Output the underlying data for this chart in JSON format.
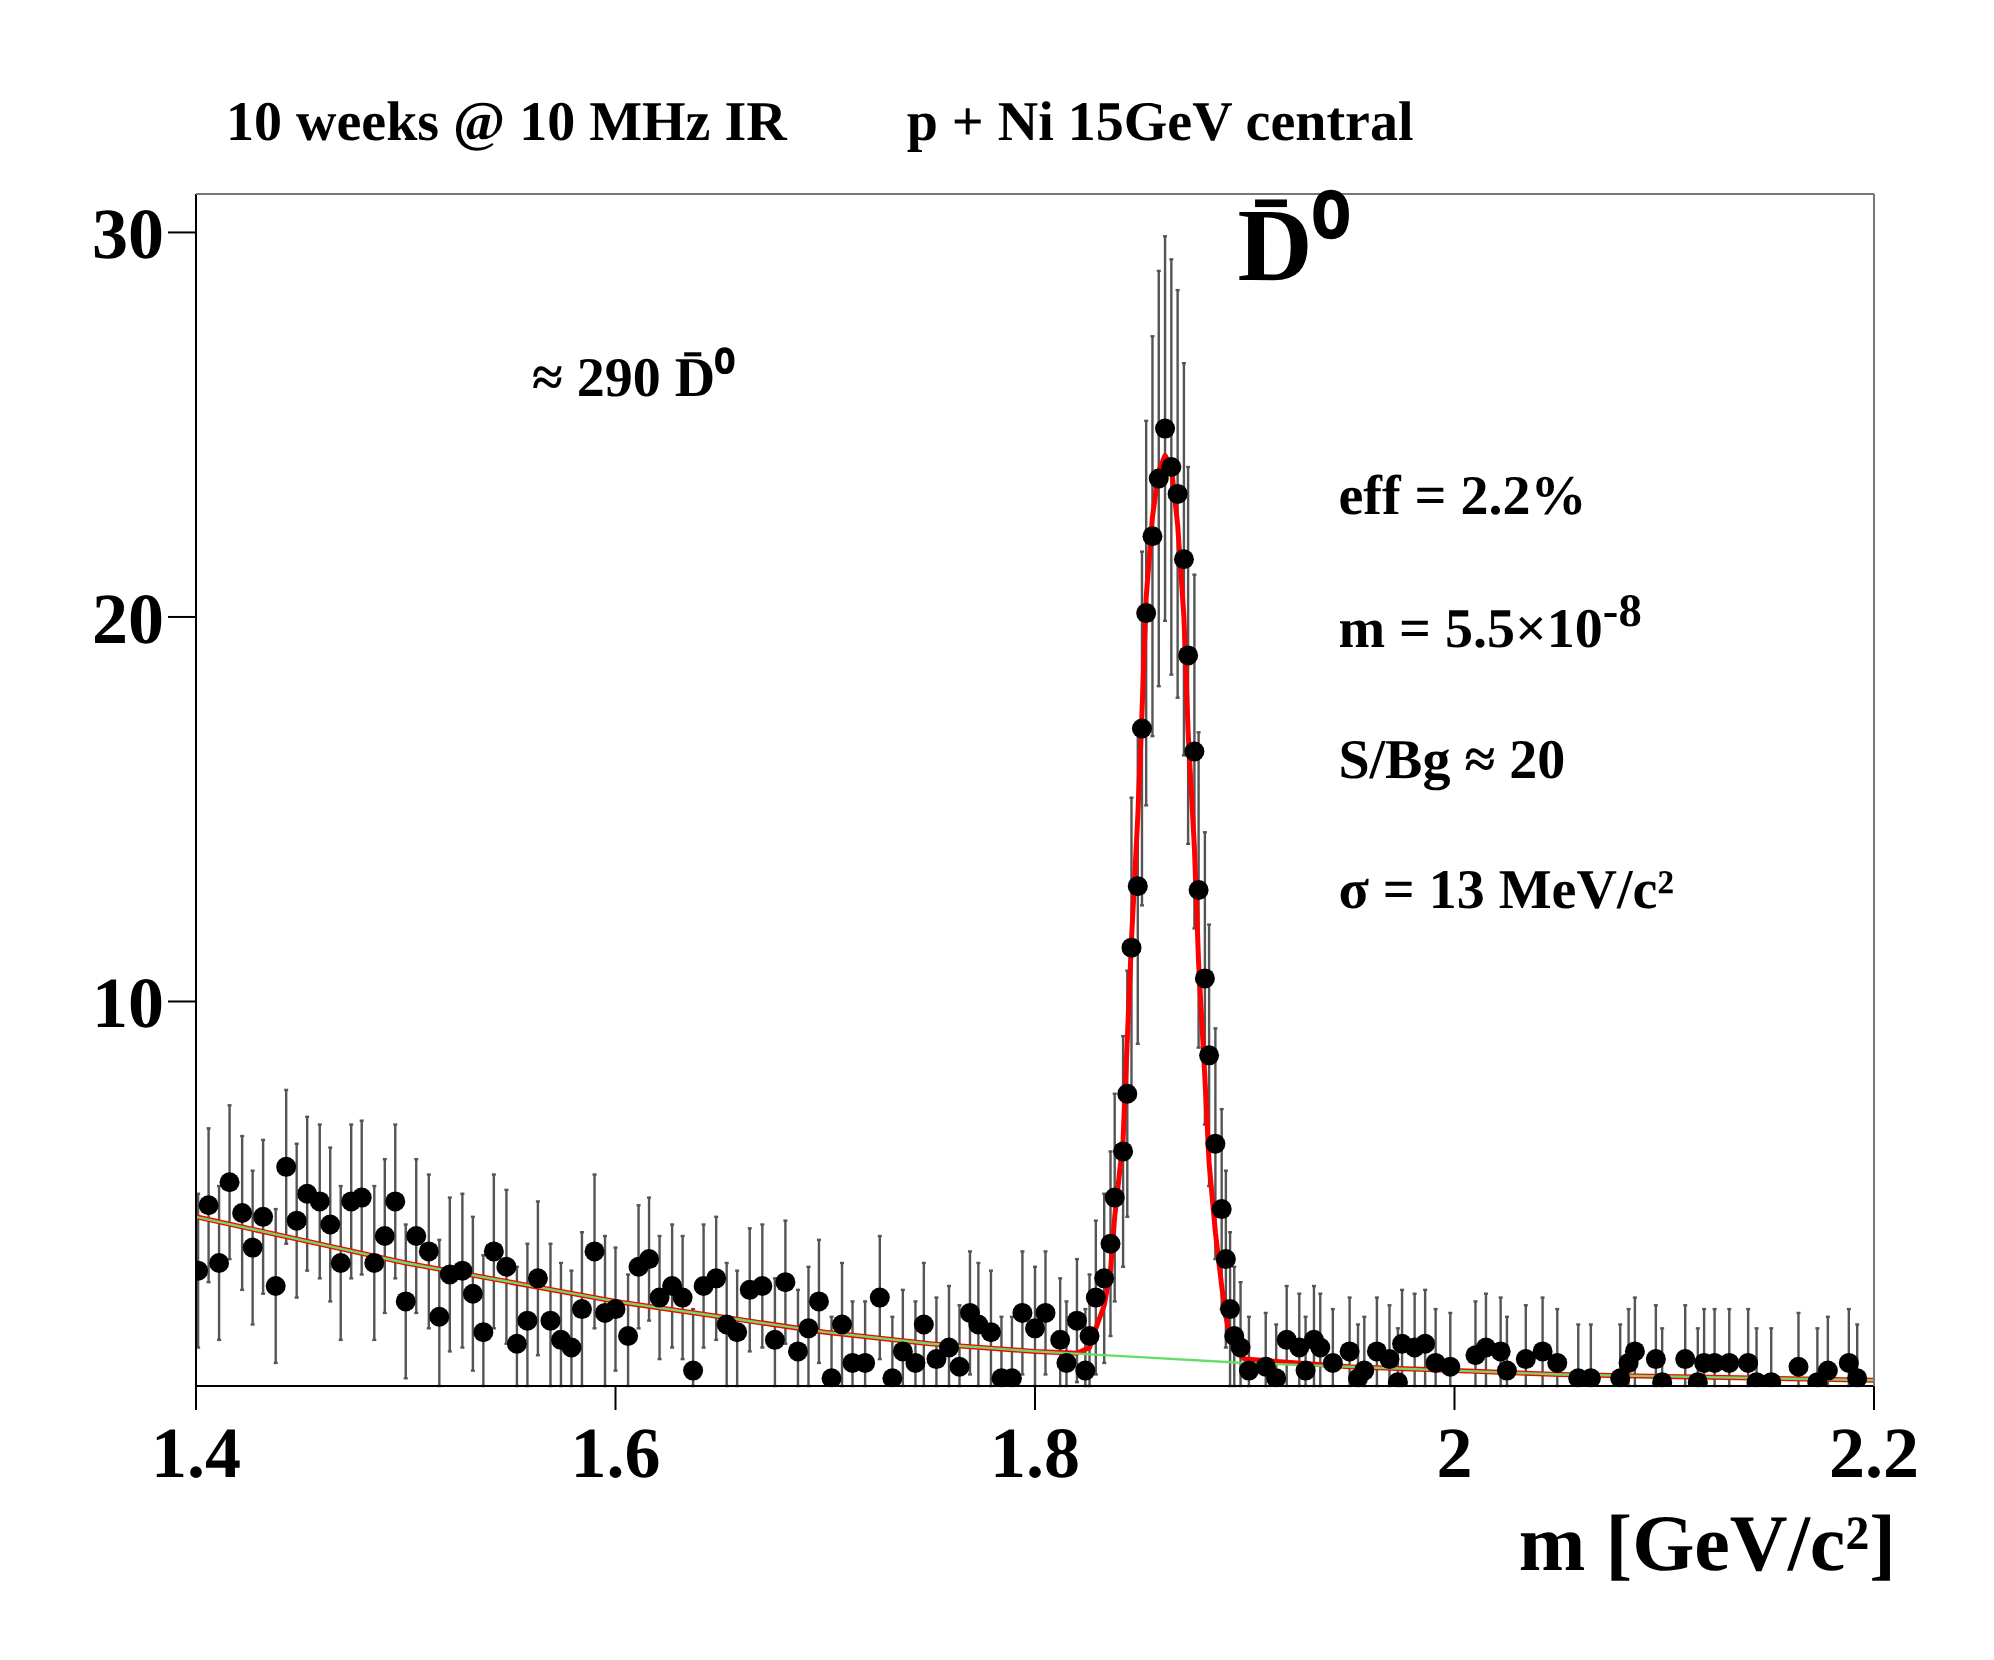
{
  "chart_data": {
    "type": "scatter",
    "title": "10 weeks @ 10 MHz IR",
    "subtitle": "p + Ni 15GeV central",
    "xlabel": "m [GeV/c²]",
    "annotations": [
      "D̄⁰",
      "≈ 290  D̄⁰",
      "eff = 2.2%",
      "m = 5.5×10$^{-8}$",
      "S/Bg  ≈ 20",
      "σ = 13 MeV/c²"
    ],
    "xlim": [
      1.4,
      2.2
    ],
    "xticks": [
      1.4,
      1.6,
      1.8,
      2,
      2.2
    ],
    "ylim": [
      0,
      31
    ],
    "yticks": [
      10,
      20,
      30
    ],
    "series": [
      {
        "color": "#000000",
        "marker": "circle",
        "x": [
          1.401,
          1.406,
          1.411,
          1.416,
          1.422,
          1.427,
          1.432,
          1.438,
          1.443,
          1.448,
          1.453,
          1.459,
          1.464,
          1.469,
          1.474,
          1.479,
          1.485,
          1.49,
          1.495,
          1.5,
          1.505,
          1.511,
          1.516,
          1.521,
          1.527,
          1.532,
          1.537,
          1.542,
          1.548,
          1.553,
          1.558,
          1.563,
          1.569,
          1.574,
          1.579,
          1.584,
          1.59,
          1.595,
          1.6,
          1.606,
          1.611,
          1.616,
          1.621,
          1.627,
          1.632,
          1.637,
          1.642,
          1.648,
          1.653,
          1.658,
          1.664,
          1.67,
          1.676,
          1.681,
          1.687,
          1.692,
          1.697,
          1.703,
          1.708,
          1.713,
          1.719,
          1.726,
          1.732,
          1.737,
          1.743,
          1.747,
          1.753,
          1.759,
          1.764,
          1.769,
          1.773,
          1.779,
          1.784,
          1.789,
          1.794,
          1.8,
          1.805,
          1.812,
          1.815,
          1.82,
          1.824,
          1.826,
          1.829,
          1.833,
          1.836,
          1.838,
          1.842,
          1.844,
          1.846,
          1.849,
          1.851,
          1.853,
          1.856,
          1.859,
          1.862,
          1.865,
          1.868,
          1.871,
          1.873,
          1.876,
          1.878,
          1.881,
          1.883,
          1.886,
          1.889,
          1.891,
          1.893,
          1.895,
          1.898,
          1.902,
          1.91,
          1.915,
          1.92,
          1.926,
          1.929,
          1.933,
          1.936,
          1.942,
          1.95,
          1.954,
          1.957,
          1.963,
          1.969,
          1.973,
          1.975,
          1.981,
          1.986,
          1.991,
          1.998,
          2.01,
          2.015,
          2.022,
          2.025,
          2.034,
          2.042,
          2.049,
          2.059,
          2.065,
          2.079,
          2.083,
          2.086,
          2.096,
          2.099,
          2.11,
          2.116,
          2.119,
          2.124,
          2.131,
          2.14,
          2.144,
          2.151,
          2.164,
          2.173,
          2.178,
          2.188,
          2.192
        ],
        "values": [
          3.0,
          4.7,
          3.2,
          5.3,
          4.5,
          3.6,
          4.4,
          2.6,
          5.7,
          4.3,
          5.0,
          4.8,
          4.2,
          3.2,
          4.8,
          4.9,
          3.2,
          3.9,
          4.8,
          2.2,
          3.9,
          3.5,
          1.8,
          2.9,
          3.0,
          2.4,
          1.4,
          3.5,
          3.1,
          1.1,
          1.7,
          2.8,
          1.7,
          1.2,
          1.0,
          2.0,
          3.5,
          1.9,
          2.0,
          1.3,
          3.1,
          3.3,
          2.3,
          2.6,
          2.3,
          0.4,
          2.6,
          2.8,
          1.6,
          1.4,
          2.5,
          2.6,
          1.2,
          2.7,
          0.9,
          1.5,
          2.2,
          0.2,
          1.6,
          0.6,
          0.6,
          2.3,
          0.2,
          0.9,
          0.6,
          1.6,
          0.7,
          1.0,
          0.5,
          1.9,
          1.6,
          1.4,
          0.2,
          0.2,
          1.9,
          1.5,
          1.9,
          1.2,
          0.6,
          1.7,
          0.4,
          1.3,
          2.3,
          2.8,
          3.7,
          4.9,
          6.1,
          7.6,
          11.4,
          13.0,
          17.1,
          20.1,
          22.1,
          23.6,
          24.9,
          23.9,
          23.2,
          21.5,
          19.0,
          16.5,
          12.9,
          10.6,
          8.6,
          6.3,
          4.6,
          3.3,
          2.0,
          1.3,
          1.0,
          0.4,
          0.5,
          0.2,
          1.2,
          1.0,
          0.4,
          1.2,
          1.0,
          0.6,
          0.9,
          0.2,
          0.4,
          0.9,
          0.7,
          0.1,
          1.1,
          1.0,
          1.1,
          0.6,
          0.5,
          0.8,
          1.0,
          0.9,
          0.4,
          0.7,
          0.9,
          0.6,
          0.2,
          0.2,
          0.2,
          0.6,
          0.9,
          0.7,
          0.1,
          0.7,
          0.1,
          0.6,
          0.6,
          0.6,
          0.6,
          0.1,
          0.1,
          0.5,
          0.1,
          0.4,
          0.6,
          0.2
        ],
        "errors": [
          2.0,
          2.0,
          2.0,
          2.0,
          2.0,
          2.0,
          2.0,
          2.0,
          2.0,
          2.0,
          2.0,
          2.0,
          2.0,
          2.0,
          2.0,
          2.0,
          2.0,
          2.0,
          2.0,
          2.0,
          2.0,
          2.0,
          [
            0,
            3.8
          ],
          2.0,
          2.0,
          2.0,
          [
            0,
            3.4
          ],
          2.0,
          2.0,
          [
            0,
            3.1
          ],
          [
            0,
            3.7
          ],
          2.0,
          [
            0,
            3.7
          ],
          [
            0,
            3.2
          ],
          [
            0,
            3.0
          ],
          2.0,
          2.0,
          [
            0,
            3.9
          ],
          1.6,
          [
            0,
            2.9
          ],
          1.6,
          1.6,
          1.6,
          1.6,
          1.6,
          [
            0,
            2.0
          ],
          1.6,
          1.6,
          1.6,
          [
            0,
            3.0
          ],
          1.6,
          1.6,
          [
            0,
            2.8
          ],
          1.6,
          [
            0,
            2.5
          ],
          [
            0,
            3.1
          ],
          1.6,
          [
            0,
            1.8
          ],
          1.6,
          [
            0,
            2.2
          ],
          [
            0,
            2.2
          ],
          1.6,
          [
            0,
            1.8
          ],
          [
            0,
            2.5
          ],
          [
            0,
            2.2
          ],
          1.6,
          [
            0,
            2.3
          ],
          [
            0,
            2.6
          ],
          [
            0,
            2.1
          ],
          1.6,
          1.6,
          [
            0,
            3.0
          ],
          [
            0,
            1.8
          ],
          [
            0,
            1.8
          ],
          1.6,
          [
            0,
            3.1
          ],
          1.6,
          [
            0,
            2.8
          ],
          [
            0,
            2.2
          ],
          1.6,
          [
            0,
            2.0
          ],
          [
            0,
            2.9
          ],
          2.0,
          2.2,
          2.4,
          2.7,
          3.0,
          3.2,
          3.9,
          4.1,
          4.6,
          5.0,
          5.2,
          5.4,
          5.0,
          5.4,
          5.3,
          5.1,
          4.9,
          4.6,
          4.1,
          3.8,
          3.4,
          3.0,
          2.6,
          2.3,
          2.0,
          [
            0,
            3.1
          ],
          [
            0,
            2.7
          ],
          [
            0,
            1.8
          ],
          [
            0,
            1.9
          ],
          [
            0,
            1.6
          ],
          [
            0,
            2.6
          ],
          [
            0,
            2.4
          ],
          [
            0,
            1.8
          ],
          [
            0,
            2.6
          ],
          [
            0,
            2.4
          ],
          [
            0,
            2.0
          ],
          [
            0,
            2.3
          ],
          [
            0,
            1.6
          ],
          [
            0,
            1.8
          ],
          [
            0,
            2.3
          ],
          [
            0,
            2.1
          ],
          [
            0,
            1.5
          ],
          [
            0,
            2.5
          ],
          [
            0,
            2.4
          ],
          [
            0,
            2.5
          ],
          [
            0,
            2.0
          ],
          [
            0,
            1.9
          ],
          [
            0,
            2.2
          ],
          [
            0,
            2.4
          ],
          [
            0,
            2.3
          ],
          [
            0,
            1.8
          ],
          [
            0,
            2.1
          ],
          [
            0,
            2.3
          ],
          [
            0,
            2.0
          ],
          [
            0,
            1.6
          ],
          [
            0,
            1.6
          ],
          [
            0,
            1.6
          ],
          [
            0,
            2.0
          ],
          [
            0,
            2.3
          ],
          [
            0,
            2.1
          ],
          [
            0,
            1.5
          ],
          [
            0,
            2.1
          ],
          [
            0,
            1.5
          ],
          [
            0,
            2.0
          ],
          [
            0,
            2.0
          ],
          [
            0,
            2.0
          ],
          [
            0,
            2.0
          ],
          [
            0,
            1.5
          ],
          [
            0,
            1.5
          ],
          [
            0,
            1.9
          ],
          [
            0,
            1.5
          ],
          [
            0,
            1.8
          ],
          [
            0,
            2.0
          ],
          [
            0,
            1.6
          ]
        ]
      },
      {
        "type": "line",
        "color": "#ff0000",
        "x": [
          1.4,
          1.45,
          1.5,
          1.55,
          1.6,
          1.65,
          1.7,
          1.75,
          1.8,
          1.82,
          1.826,
          1.829,
          1.833,
          1.836,
          1.838,
          1.842,
          1.844,
          1.846,
          1.849,
          1.851,
          1.853,
          1.856,
          1.859,
          1.862,
          1.865,
          1.868,
          1.871,
          1.873,
          1.876,
          1.878,
          1.881,
          1.883,
          1.886,
          1.889,
          1.891,
          1.893,
          1.895,
          1.898,
          1.9,
          1.95,
          2.0,
          2.05,
          2.1,
          2.15,
          2.2
        ],
        "values": [
          4.4,
          3.8,
          3.2,
          2.7,
          2.2,
          1.8,
          1.4,
          1.1,
          0.9,
          0.85,
          1.0,
          1.5,
          2.1,
          3.0,
          4.4,
          6.4,
          9.0,
          11.6,
          14.8,
          17.5,
          20.5,
          22.6,
          23.8,
          24.2,
          23.9,
          22.4,
          20.0,
          17.0,
          14.0,
          11.0,
          8.0,
          5.8,
          4.0,
          2.6,
          1.8,
          1.3,
          1.0,
          0.8,
          0.7,
          0.5,
          0.4,
          0.3,
          0.25,
          0.2,
          0.15
        ]
      },
      {
        "type": "line",
        "color": "#66dd66",
        "x": [
          1.4,
          1.45,
          1.5,
          1.55,
          1.6,
          1.65,
          1.7,
          1.75,
          1.8,
          1.85,
          1.9,
          1.95,
          2.0,
          2.05,
          2.1,
          2.15,
          2.2
        ],
        "values": [
          4.4,
          3.8,
          3.2,
          2.7,
          2.2,
          1.8,
          1.4,
          1.1,
          0.9,
          0.75,
          0.6,
          0.5,
          0.4,
          0.3,
          0.25,
          0.2,
          0.15
        ]
      }
    ]
  }
}
